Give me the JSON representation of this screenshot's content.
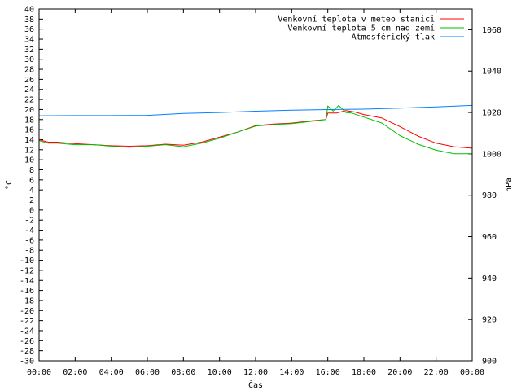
{
  "chart_data": {
    "type": "line",
    "xlabel": "Čas",
    "ylabel_left": "°C",
    "ylabel_right": "hPa",
    "x_ticks": [
      "00:00",
      "02:00",
      "04:00",
      "06:00",
      "08:00",
      "10:00",
      "12:00",
      "14:00",
      "16:00",
      "18:00",
      "20:00",
      "22:00",
      "00:00"
    ],
    "x_range_hours": [
      0,
      24
    ],
    "ylim_left": [
      -30,
      40
    ],
    "y_ticks_left_step": 2,
    "ylim_right": [
      900,
      1070
    ],
    "y_ticks_right": [
      900,
      920,
      940,
      960,
      980,
      1000,
      1020,
      1040,
      1060
    ],
    "grid": false,
    "legend_position": "top-right",
    "series": [
      {
        "name": "Venkovní teplota v meteo stanici",
        "color": "#ff0000",
        "axis": "left",
        "x_hours": [
          0,
          0.5,
          1,
          2,
          3,
          4,
          5,
          6,
          7,
          8,
          9,
          10,
          11,
          12,
          13,
          14,
          15,
          15.9,
          16,
          16.5,
          17,
          17.5,
          18,
          19,
          20,
          21,
          22,
          23,
          24
        ],
        "values": [
          14,
          13.5,
          13.5,
          13.2,
          13,
          12.8,
          12.7,
          12.8,
          13.1,
          12.9,
          13.5,
          14.5,
          15.5,
          16.8,
          17.1,
          17.3,
          17.7,
          18,
          19.3,
          19.3,
          19.8,
          19.5,
          19,
          18.3,
          16.6,
          14.7,
          13.3,
          12.6,
          12.3
        ]
      },
      {
        "name": "Venkovní teplota 5 cm nad zemí",
        "color": "#00c000",
        "axis": "left",
        "x_hours": [
          0,
          0.5,
          1,
          2,
          3,
          4,
          5,
          6,
          7,
          8,
          9,
          10,
          11,
          12,
          13,
          14,
          15,
          15.9,
          16,
          16.3,
          16.6,
          17,
          17.3,
          18,
          19,
          20,
          21,
          22,
          23,
          24
        ],
        "values": [
          13.8,
          13.3,
          13.3,
          13,
          13,
          12.7,
          12.5,
          12.7,
          13,
          12.6,
          13.3,
          14.3,
          15.5,
          16.7,
          17,
          17.2,
          17.6,
          18,
          20.7,
          19.7,
          20.8,
          19.4,
          19.3,
          18.5,
          17.3,
          14.8,
          13.1,
          11.9,
          11.2,
          11.2
        ]
      },
      {
        "name": "Atmosférický tlak",
        "color": "#0080ff",
        "axis": "right",
        "x_hours": [
          0,
          2,
          4,
          6,
          8,
          10,
          12,
          14,
          16,
          18,
          20,
          22,
          24
        ],
        "values": [
          1018.4,
          1018.5,
          1018.5,
          1018.6,
          1019.5,
          1020,
          1020.6,
          1021.1,
          1021.4,
          1021.6,
          1022.1,
          1022.7,
          1023.4
        ]
      }
    ]
  }
}
